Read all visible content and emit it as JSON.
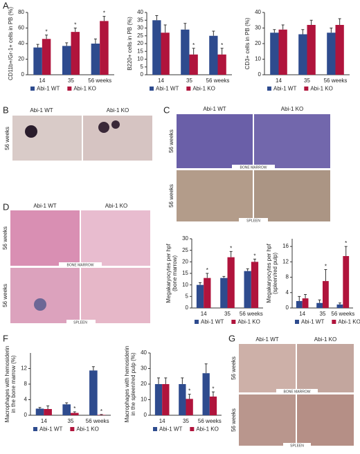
{
  "chart_data": [
    {
      "type": "bar",
      "ylabel": [
        "CD11b+/Gr-1+ cells in PB (%)"
      ],
      "categories": [
        "14",
        "35",
        "56 weeks"
      ],
      "series": [
        {
          "name": "Abi-1 WT",
          "color": "#2e4b8e",
          "values": [
            35,
            37,
            40
          ],
          "errors": [
            4,
            4,
            6
          ],
          "markers": [
            null,
            null,
            null
          ]
        },
        {
          "name": "Abi-1 KO",
          "color": "#b0143c",
          "values": [
            46,
            55,
            69
          ],
          "errors": [
            5,
            5,
            6
          ],
          "markers": [
            "*",
            "*",
            "*"
          ]
        }
      ],
      "ylim": [
        0,
        80
      ],
      "yticks": [
        0,
        20,
        40,
        60,
        80
      ]
    },
    {
      "type": "bar",
      "ylabel": [
        "B220+ cells in PB (%)"
      ],
      "categories": [
        "14",
        "35",
        "56 weeks"
      ],
      "series": [
        {
          "name": "Abi-1 WT",
          "color": "#2e4b8e",
          "values": [
            35,
            29,
            25
          ],
          "errors": [
            3,
            4,
            3
          ],
          "markers": [
            null,
            null,
            null
          ]
        },
        {
          "name": "Abi-1 KO",
          "color": "#b0143c",
          "values": [
            27,
            13,
            13
          ],
          "errors": [
            5,
            4,
            4
          ],
          "markers": [
            null,
            "*",
            "*"
          ]
        }
      ],
      "ylim": [
        0,
        40
      ],
      "yticks": [
        0,
        5,
        10,
        15,
        20,
        25,
        30,
        35,
        40
      ]
    },
    {
      "type": "bar",
      "ylabel": [
        "CD3+ cells in PB (%)"
      ],
      "categories": [
        "14",
        "35",
        "56 weeks"
      ],
      "series": [
        {
          "name": "Abi-1 WT",
          "color": "#2e4b8e",
          "values": [
            27,
            26,
            27
          ],
          "errors": [
            2,
            3,
            3
          ],
          "markers": [
            null,
            null,
            null
          ]
        },
        {
          "name": "Abi-1 KO",
          "color": "#b0143c",
          "values": [
            29,
            32,
            32
          ],
          "errors": [
            3,
            3,
            4
          ],
          "markers": [
            null,
            null,
            null
          ]
        }
      ],
      "ylim": [
        0,
        40
      ],
      "yticks": [
        0,
        10,
        20,
        30,
        40
      ]
    },
    {
      "type": "bar",
      "ylabel": [
        "Megakaryocytes per hpf",
        "(bone marrow)"
      ],
      "categories": [
        "14",
        "35",
        "56 weeks"
      ],
      "series": [
        {
          "name": "Abi-1 WT",
          "color": "#2e4b8e",
          "values": [
            10,
            13,
            16
          ],
          "errors": [
            1,
            0.7,
            1
          ],
          "markers": [
            null,
            null,
            null
          ]
        },
        {
          "name": "Abi-1 KO",
          "color": "#b0143c",
          "values": [
            13,
            22,
            20
          ],
          "errors": [
            2,
            2.5,
            1.2
          ],
          "markers": [
            "*",
            "*",
            "*"
          ]
        }
      ],
      "ylim": [
        0,
        30
      ],
      "yticks": [
        0,
        5,
        10,
        15,
        20,
        25,
        30
      ]
    },
    {
      "type": "bar",
      "ylabel": [
        "Megakaryocytes per hpf",
        "(spleen/red pulp)"
      ],
      "categories": [
        "14",
        "35",
        "56 weeks"
      ],
      "series": [
        {
          "name": "Abi-1 WT",
          "color": "#2e4b8e",
          "values": [
            1.8,
            1.3,
            0.9
          ],
          "errors": [
            1.2,
            0.8,
            0.4
          ],
          "markers": [
            null,
            null,
            null
          ]
        },
        {
          "name": "Abi-1 KO",
          "color": "#b0143c",
          "values": [
            2.5,
            7,
            13.5
          ],
          "errors": [
            1,
            3,
            2.5
          ],
          "markers": [
            null,
            "*",
            "*"
          ]
        }
      ],
      "ylim": [
        0,
        18
      ],
      "yticks": [
        0,
        4,
        8,
        12,
        16
      ]
    },
    {
      "type": "bar",
      "ylabel": [
        "Macrophages with hemosiderin",
        "in the bone marrow (%)"
      ],
      "categories": [
        "14",
        "35",
        "56 weeks"
      ],
      "series": [
        {
          "name": "Abi-1 WT",
          "color": "#2e4b8e",
          "values": [
            1.7,
            2.8,
            11.5
          ],
          "errors": [
            0.3,
            0.4,
            1
          ],
          "markers": [
            null,
            null,
            null
          ]
        },
        {
          "name": "Abi-1 KO",
          "color": "#b0143c",
          "values": [
            1.6,
            0.6,
            0.1
          ],
          "errors": [
            0.8,
            0.3,
            0.1
          ],
          "markers": [
            null,
            "*",
            "*"
          ]
        }
      ],
      "ylim": [
        0,
        16
      ],
      "yticks": [
        0,
        4,
        8,
        12
      ]
    },
    {
      "type": "bar",
      "ylabel": [
        "Macrophages with hemosiderin",
        "in the spleen/red pulp (%)"
      ],
      "categories": [
        "14",
        "35",
        "56 weeks"
      ],
      "series": [
        {
          "name": "Abi-1 WT",
          "color": "#2e4b8e",
          "values": [
            20,
            20,
            27
          ],
          "errors": [
            4,
            4,
            6
          ],
          "markers": [
            null,
            null,
            null
          ]
        },
        {
          "name": "Abi-1 KO",
          "color": "#b0143c",
          "values": [
            20,
            10.5,
            12
          ],
          "errors": [
            4,
            3,
            3
          ],
          "markers": [
            null,
            "*",
            "*"
          ]
        }
      ],
      "ylim": [
        0,
        40
      ],
      "yticks": [
        0,
        10,
        20,
        30,
        40
      ]
    }
  ],
  "panels": {
    "A": {
      "letter": "A"
    },
    "B": {
      "letter": "B",
      "cols": [
        "Abi-1 WT",
        "Abi-1 KO"
      ],
      "rows": [
        "56 weeks"
      ]
    },
    "C": {
      "letter": "C",
      "cols": [
        "Abi-1 WT",
        "Abi-1 KO"
      ],
      "rows": [
        "56 weeks",
        "56 weeks"
      ],
      "tissues": [
        "BONE MARROW",
        "SPLEEN"
      ]
    },
    "D": {
      "letter": "D",
      "cols": [
        "Abi-1 WT",
        "Abi-1 KO"
      ],
      "rows": [
        "56 weeks",
        "56 weeks"
      ],
      "tissues": [
        "BONE MARROW",
        "SPLEEN"
      ]
    },
    "F": {
      "letter": "F"
    },
    "G": {
      "letter": "G",
      "cols": [
        "Abi-1 WT",
        "Abi-1 KO"
      ],
      "rows": [
        "56 weeks",
        "56 weeks"
      ],
      "tissues": [
        "BONE MARROW",
        "SPLEEN"
      ]
    }
  }
}
